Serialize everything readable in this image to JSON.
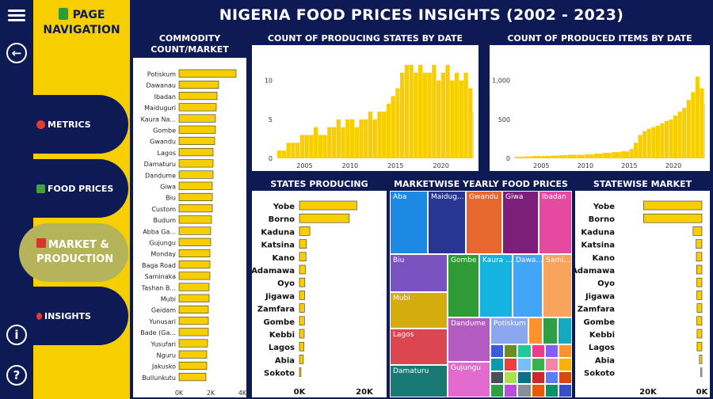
{
  "header": {
    "title": "NIGERIA FOOD PRICES INSIGHTS (2002 - 2023)"
  },
  "nav": {
    "title_line1": "PAGE",
    "title_line2": "NAVIGATION",
    "items": [
      {
        "label": "METRICS",
        "icon": "target-icon",
        "icon_color": "#e53935"
      },
      {
        "label": "FOOD PRICES",
        "icon": "check-icon",
        "icon_color": "#43a047"
      },
      {
        "label_line1": "MARKET &",
        "label_line2": "PRODUCTION",
        "icon": "calendar-icon",
        "icon_color": "#d8362b"
      },
      {
        "label": "INSIGHTS",
        "icon": "pin-icon",
        "icon_color": "#e53935"
      }
    ]
  },
  "rail": {
    "menu": "menu-icon",
    "back": "back-icon",
    "info": "i",
    "help": "?"
  },
  "colors": {
    "navy": "#0d1a54",
    "yellow": "#f7cf00",
    "bar": "#f7cf00"
  },
  "commodity": {
    "title": "COMMODITY COUNT/MARKET",
    "chart_data": {
      "type": "bar",
      "orientation": "horizontal",
      "categories": [
        "Potiskum",
        "Dawanau",
        "Ibadan",
        "Maiduguri",
        "Kaura Na...",
        "Gombe",
        "Gwandu",
        "Lagos",
        "Damaturu",
        "Dandume",
        "Giwa",
        "Biu",
        "Custom",
        "Budum",
        "Abba Ga...",
        "Gujungu",
        "Monday",
        "Baga Road",
        "Saminaka",
        "Tashan B...",
        "Mubi",
        "Geidam",
        "Yunusari",
        "Bade (Ga...",
        "Yusufari",
        "Nguru",
        "Jakusko",
        "Bullunkutu"
      ],
      "values": [
        3600,
        2500,
        2400,
        2350,
        2300,
        2300,
        2250,
        2150,
        2150,
        2150,
        2100,
        2100,
        2100,
        2050,
        2000,
        2000,
        1950,
        1950,
        1950,
        1900,
        1900,
        1850,
        1850,
        1850,
        1800,
        1750,
        1750,
        1700
      ],
      "x_ticks": [
        "0K",
        "2K",
        "4K"
      ],
      "xlim": [
        0,
        4000
      ]
    }
  },
  "states_date": {
    "title": "COUNT OF PRODUCING STATES BY DATE",
    "chart_data": {
      "type": "bar",
      "x_ticks": [
        "2005",
        "2010",
        "2015",
        "2020"
      ],
      "y_ticks": [
        "0",
        "5",
        "10"
      ],
      "xlim": [
        2002,
        2023.6
      ],
      "ylim": [
        0,
        12.5
      ],
      "points": [
        [
          2002.0,
          1
        ],
        [
          2002.5,
          1
        ],
        [
          2003.0,
          2
        ],
        [
          2003.5,
          2
        ],
        [
          2004.0,
          2
        ],
        [
          2004.5,
          3
        ],
        [
          2005.0,
          3
        ],
        [
          2005.5,
          3
        ],
        [
          2006.0,
          4
        ],
        [
          2006.5,
          3
        ],
        [
          2007.0,
          3
        ],
        [
          2007.5,
          4
        ],
        [
          2008.0,
          4
        ],
        [
          2008.5,
          5
        ],
        [
          2009.0,
          4
        ],
        [
          2009.5,
          5
        ],
        [
          2010.0,
          5
        ],
        [
          2010.5,
          4
        ],
        [
          2011.0,
          5
        ],
        [
          2011.5,
          5
        ],
        [
          2012.0,
          6
        ],
        [
          2012.5,
          5
        ],
        [
          2013.0,
          6
        ],
        [
          2013.5,
          6
        ],
        [
          2014.0,
          7
        ],
        [
          2014.5,
          8
        ],
        [
          2015.0,
          9
        ],
        [
          2015.5,
          11
        ],
        [
          2016.0,
          12
        ],
        [
          2016.5,
          12
        ],
        [
          2017.0,
          11
        ],
        [
          2017.5,
          12
        ],
        [
          2018.0,
          11
        ],
        [
          2018.5,
          11
        ],
        [
          2019.0,
          12
        ],
        [
          2019.5,
          10
        ],
        [
          2020.0,
          11
        ],
        [
          2020.5,
          12
        ],
        [
          2021.0,
          10
        ],
        [
          2021.5,
          11
        ],
        [
          2022.0,
          10
        ],
        [
          2022.5,
          11
        ],
        [
          2023.0,
          9
        ],
        [
          2023.5,
          6
        ]
      ]
    }
  },
  "items_date": {
    "title": "COUNT OF PRODUCED ITEMS BY DATE",
    "chart_data": {
      "type": "bar",
      "x_ticks": [
        "2005",
        "2010",
        "2015",
        "2020"
      ],
      "y_ticks": [
        "0",
        "500",
        "1,000"
      ],
      "xlim": [
        2002,
        2023.6
      ],
      "ylim": [
        0,
        1250
      ],
      "points": [
        [
          2002.0,
          20
        ],
        [
          2003.0,
          25
        ],
        [
          2004.0,
          30
        ],
        [
          2005.0,
          30
        ],
        [
          2006.0,
          35
        ],
        [
          2007.0,
          40
        ],
        [
          2008.0,
          45
        ],
        [
          2009.0,
          45
        ],
        [
          2010.0,
          50
        ],
        [
          2011.0,
          60
        ],
        [
          2012.0,
          70
        ],
        [
          2013.0,
          80
        ],
        [
          2014.0,
          90
        ],
        [
          2015.0,
          120
        ],
        [
          2015.5,
          200
        ],
        [
          2016.0,
          300
        ],
        [
          2016.5,
          350
        ],
        [
          2017.0,
          380
        ],
        [
          2017.5,
          400
        ],
        [
          2018.0,
          420
        ],
        [
          2018.5,
          450
        ],
        [
          2019.0,
          480
        ],
        [
          2019.5,
          500
        ],
        [
          2020.0,
          550
        ],
        [
          2020.5,
          600
        ],
        [
          2021.0,
          650
        ],
        [
          2021.5,
          750
        ],
        [
          2022.0,
          850
        ],
        [
          2022.5,
          1050
        ],
        [
          2023.0,
          900
        ],
        [
          2023.5,
          700
        ]
      ]
    }
  },
  "states_power": {
    "title": "STATES PRODUCING POWER",
    "chart_data": {
      "type": "bar",
      "orientation": "horizontal",
      "categories": [
        "Yobe",
        "Borno",
        "Kaduna",
        "Katsina",
        "Kano",
        "Adamawa",
        "Oyo",
        "Jigawa",
        "Zamfara",
        "Gombe",
        "Kebbi",
        "Lagos",
        "Abia",
        "Sokoto"
      ],
      "values": [
        26500,
        23000,
        4800,
        3200,
        3000,
        2700,
        2500,
        2400,
        2300,
        2300,
        2200,
        2100,
        1800,
        700
      ],
      "x_ticks": [
        "0K",
        "20K"
      ],
      "xlim": [
        0,
        30000
      ]
    }
  },
  "treemap": {
    "title": "MARKETWISE YEARLY FOOD PRICES",
    "cells": [
      {
        "label": "Aba",
        "color": "#1e88e5"
      },
      {
        "label": "Maidug...",
        "color": "#283593"
      },
      {
        "label": "Gwandu",
        "color": "#e8672f"
      },
      {
        "label": "Giwa",
        "color": "#7b1f7a"
      },
      {
        "label": "Ibadan",
        "color": "#e64aa0"
      },
      {
        "label": "Biu",
        "color": "#7b53c1"
      },
      {
        "label": "Gombe",
        "color": "#2e9b36"
      },
      {
        "label": "Kaura ...",
        "color": "#15b3e0"
      },
      {
        "label": "Dawa...",
        "color": "#42a5f5"
      },
      {
        "label": "Sami...",
        "color": "#f7a35c"
      },
      {
        "label": "Mubi",
        "color": "#d4ac0d"
      },
      {
        "label": "Lagos",
        "color": "#dc4651"
      },
      {
        "label": "Dandume",
        "color": "#b35bc0"
      },
      {
        "label": "Potiskum",
        "color": "#8aa7f0"
      },
      {
        "label": "Damaturu",
        "color": "#197a75"
      },
      {
        "label": "Gujungu",
        "color": "#e26bd0"
      }
    ]
  },
  "statewise": {
    "title": "STATEWISE MARKET COUNT",
    "chart_data": {
      "type": "bar",
      "orientation": "horizontal",
      "direction": "right-to-left",
      "categories": [
        "Yobe",
        "Borno",
        "Kaduna",
        "Katsina",
        "Kano",
        "Adamawa",
        "Oyo",
        "Jigawa",
        "Zamfara",
        "Gombe",
        "Kebbi",
        "Lagos",
        "Abia",
        "Sokoto"
      ],
      "values": [
        23000,
        23000,
        3500,
        2300,
        2200,
        2100,
        2000,
        2000,
        1900,
        2000,
        1900,
        1900,
        1000,
        300
      ],
      "x_ticks": [
        "20K",
        "0K"
      ],
      "xlim": [
        0,
        25000
      ]
    }
  }
}
